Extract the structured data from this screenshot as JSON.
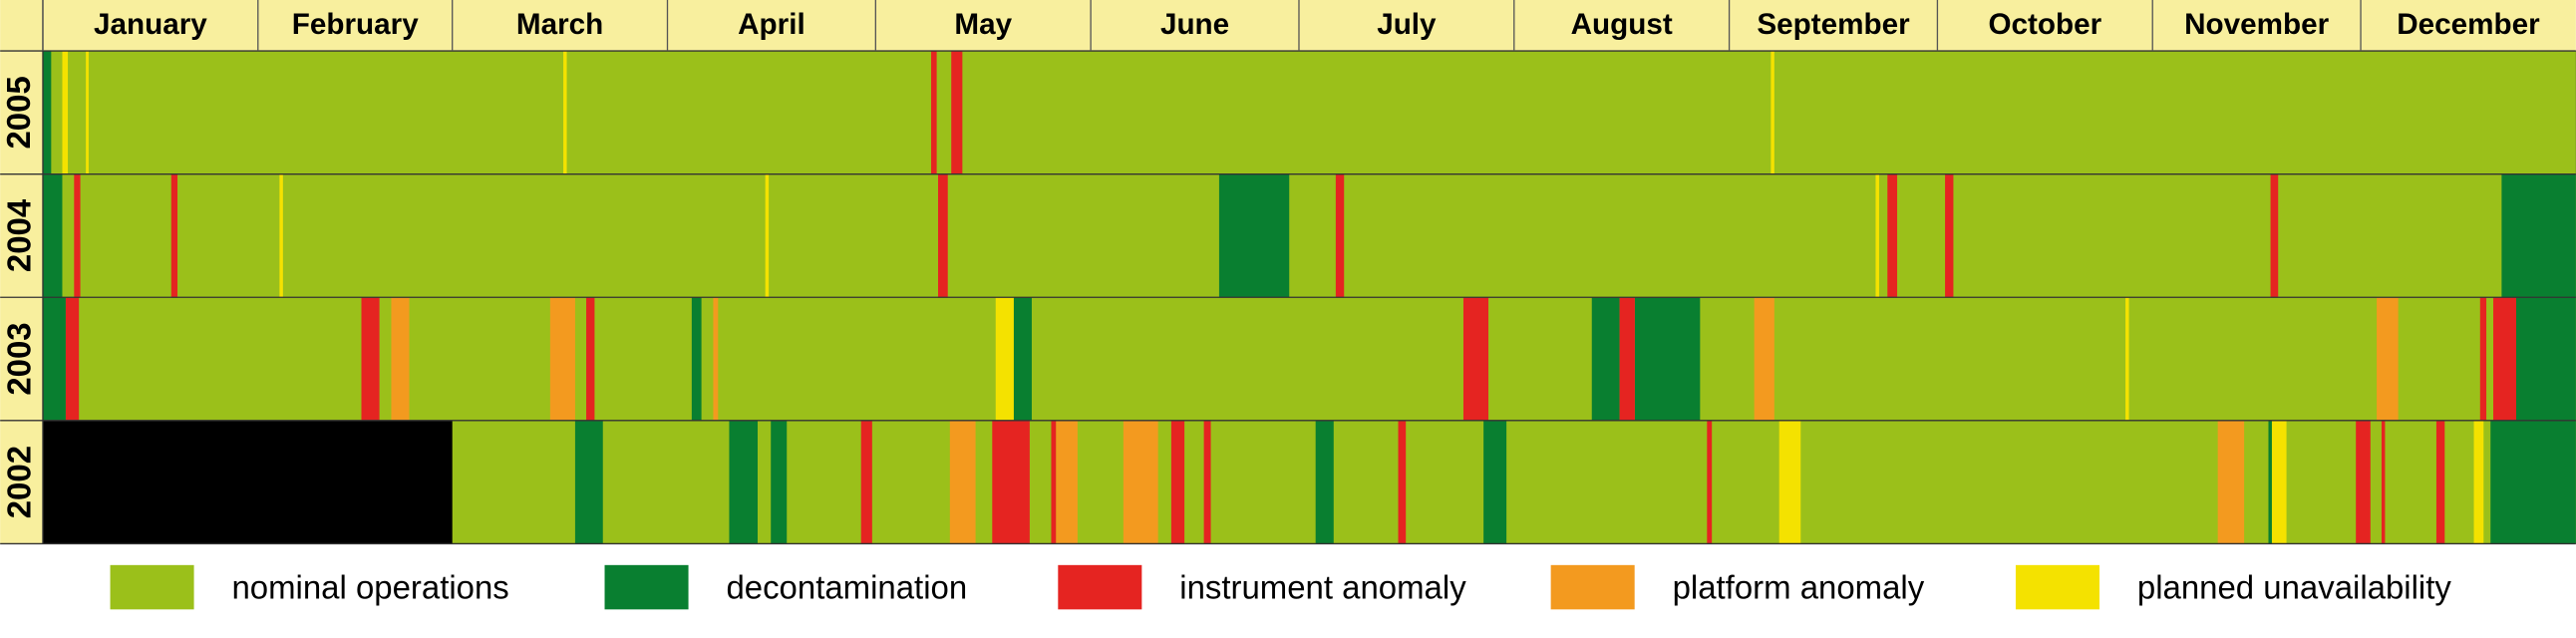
{
  "chart_data": {
    "type": "timeline",
    "categories": [
      "January",
      "February",
      "March",
      "April",
      "May",
      "June",
      "July",
      "August",
      "September",
      "October",
      "November",
      "December"
    ],
    "xticks": [
      0,
      31,
      59,
      90,
      120,
      151,
      181,
      212,
      243,
      273,
      304,
      334
    ],
    "xlim": [
      0,
      365
    ],
    "rows": [
      "2005",
      "2004",
      "2003",
      "2002"
    ],
    "series": [
      {
        "name": "nominal operations",
        "color": "#9bc01a",
        "intervals": [
          [
            [
              0,
              365
            ]
          ],
          [
            [
              0,
              365
            ]
          ],
          [
            [
              0,
              365
            ]
          ],
          [
            [
              59,
              365
            ]
          ]
        ]
      },
      {
        "name": "decontamination",
        "color": "#097f30",
        "intervals": [
          [
            [
              0,
              1.2
            ]
          ],
          [
            [
              0,
              2.8
            ],
            [
              169.5,
              179.6
            ],
            [
              354.3,
              365
            ]
          ],
          [
            [
              0,
              3.3
            ],
            [
              93.5,
              94.9
            ],
            [
              139.9,
              142.5
            ],
            [
              223.2,
              227.2
            ],
            [
              229.4,
              238.8
            ],
            [
              356.4,
              365
            ]
          ],
          [
            [
              76.7,
              80.7
            ],
            [
              98.9,
              103
            ],
            [
              104.9,
              107.2
            ],
            [
              183.4,
              186
            ],
            [
              207.6,
              210.9
            ],
            [
              320.7,
              321.2
            ],
            [
              352.7,
              365
            ]
          ]
        ]
      },
      {
        "name": "instrument anomaly",
        "color": "#e52421",
        "intervals": [
          [
            [
              128,
              128.8
            ],
            [
              130.9,
              132.5
            ]
          ],
          [
            [
              4.5,
              5.4
            ],
            [
              18.5,
              19.4
            ],
            [
              129,
              130.4
            ],
            [
              186.3,
              187.5
            ],
            [
              265.8,
              267.2
            ],
            [
              274.1,
              275.3
            ],
            [
              321,
              322.1
            ]
          ],
          [
            [
              3.3,
              5.2
            ],
            [
              45.9,
              48.5
            ],
            [
              78.3,
              79.5
            ],
            [
              204.7,
              208.3
            ],
            [
              227.2,
              229.4
            ],
            [
              351.2,
              352.1
            ],
            [
              353.1,
              356.4
            ]
          ],
          [
            [
              117.9,
              119.5
            ],
            [
              136.8,
              142.2
            ],
            [
              145.3,
              146
            ],
            [
              162.6,
              164.5
            ],
            [
              167.3,
              168.3
            ],
            [
              195.3,
              196.4
            ],
            [
              239.8,
              240.5
            ],
            [
              333.3,
              335.4
            ],
            [
              337,
              337.5
            ],
            [
              344.9,
              346.1
            ]
          ]
        ]
      },
      {
        "name": "platform anomaly",
        "color": "#f39a1f",
        "intervals": [
          [],
          [],
          [
            [
              50.2,
              52.8
            ],
            [
              73.1,
              76.7
            ],
            [
              96.6,
              97.3
            ],
            [
              246.6,
              249.5
            ],
            [
              336.3,
              339.4
            ]
          ],
          [
            [
              130.7,
              134.4
            ],
            [
              146,
              149.1
            ],
            [
              155.7,
              160.7
            ],
            [
              313.4,
              317.2
            ]
          ]
        ]
      },
      {
        "name": "planned unavailability",
        "color": "#f4e200",
        "intervals": [
          [
            [
              2.8,
              3.6
            ],
            [
              6.2,
              6.6
            ],
            [
              75,
              75.5
            ],
            [
              249,
              249.5
            ]
          ],
          [
            [
              34.1,
              34.6
            ],
            [
              104.1,
              104.6
            ],
            [
              264.1,
              264.6
            ]
          ],
          [
            [
              137.3,
              139.9
            ],
            [
              300.1,
              300.6
            ]
          ],
          [
            [
              250.2,
              253.3
            ],
            [
              321.2,
              323.3
            ],
            [
              350.3,
              351.7
            ]
          ]
        ]
      }
    ]
  }
}
